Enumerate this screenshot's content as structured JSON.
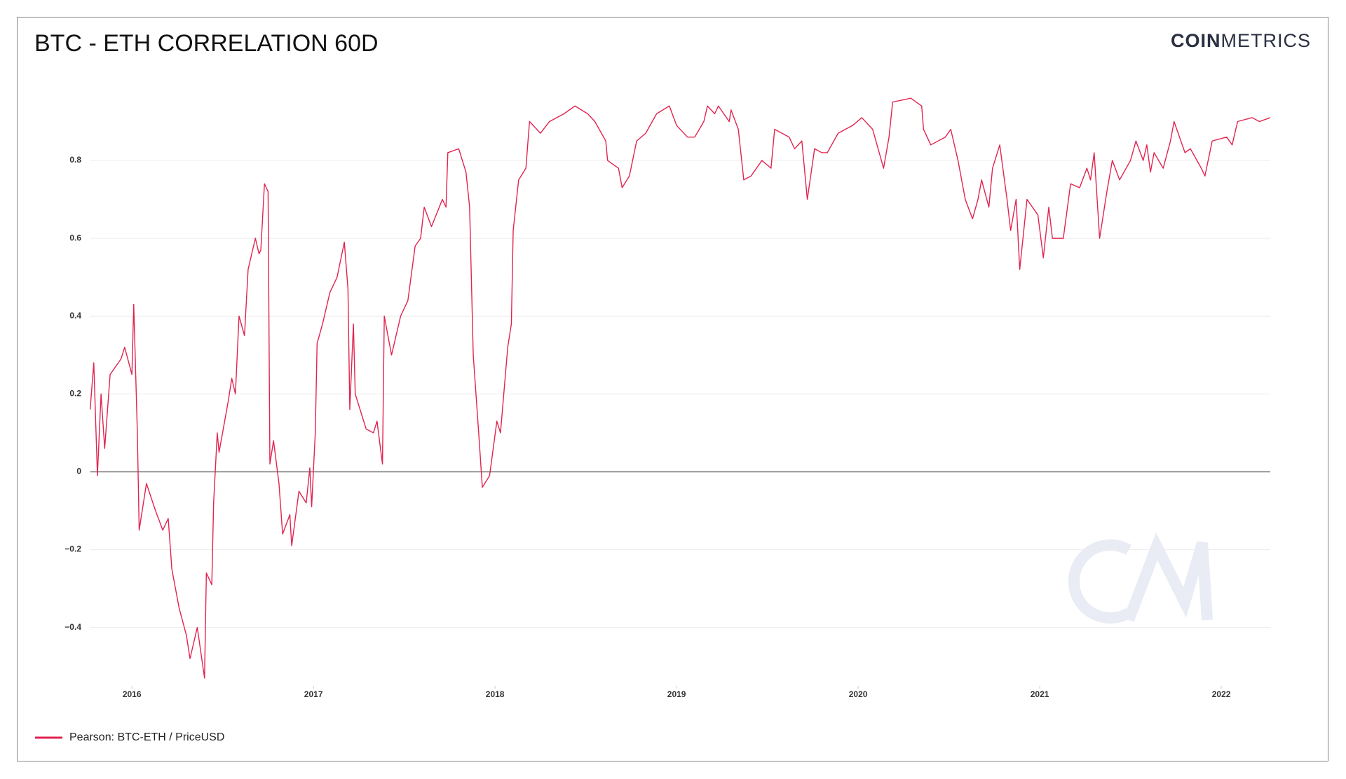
{
  "logo": {
    "bold": "COIN",
    "light": "METRICS"
  },
  "chart_data": {
    "type": "line",
    "title": "BTC - ETH CORRELATION 60D",
    "x": [
      2015.77,
      2015.79,
      2015.81,
      2015.83,
      2015.85,
      2015.88,
      2015.94,
      2015.96,
      2016.0,
      2016.01,
      2016.03,
      2016.04,
      2016.08,
      2016.13,
      2016.17,
      2016.2,
      2016.22,
      2016.26,
      2016.3,
      2016.32,
      2016.36,
      2016.4,
      2016.41,
      2016.44,
      2016.45,
      2016.47,
      2016.48,
      2016.53,
      2016.55,
      2016.57,
      2016.59,
      2016.62,
      2016.64,
      2016.68,
      2016.7,
      2016.71,
      2016.73,
      2016.75,
      2016.76,
      2016.78,
      2016.81,
      2016.83,
      2016.87,
      2016.88,
      2016.92,
      2016.96,
      2016.98,
      2016.99,
      2017.01,
      2017.02,
      2017.05,
      2017.09,
      2017.13,
      2017.17,
      2017.19,
      2017.2,
      2017.22,
      2017.23,
      2017.29,
      2017.33,
      2017.35,
      2017.38,
      2017.39,
      2017.43,
      2017.48,
      2017.52,
      2017.56,
      2017.59,
      2017.61,
      2017.65,
      2017.71,
      2017.73,
      2017.74,
      2017.8,
      2017.84,
      2017.86,
      2017.88,
      2017.91,
      2017.93,
      2017.97,
      2018.01,
      2018.03,
      2018.07,
      2018.09,
      2018.1,
      2018.13,
      2018.17,
      2018.19,
      2018.25,
      2018.3,
      2018.38,
      2018.44,
      2018.51,
      2018.55,
      2018.61,
      2018.62,
      2018.68,
      2018.7,
      2018.74,
      2018.78,
      2018.83,
      2018.89,
      2018.96,
      2019.0,
      2019.06,
      2019.1,
      2019.15,
      2019.17,
      2019.21,
      2019.23,
      2019.29,
      2019.3,
      2019.34,
      2019.37,
      2019.41,
      2019.47,
      2019.52,
      2019.54,
      2019.62,
      2019.65,
      2019.69,
      2019.72,
      2019.76,
      2019.8,
      2019.83,
      2019.89,
      2019.97,
      2020.02,
      2020.08,
      2020.14,
      2020.17,
      2020.19,
      2020.29,
      2020.35,
      2020.36,
      2020.4,
      2020.48,
      2020.51,
      2020.55,
      2020.59,
      2020.63,
      2020.66,
      2020.68,
      2020.72,
      2020.74,
      2020.78,
      2020.82,
      2020.84,
      2020.87,
      2020.89,
      2020.93,
      2020.99,
      2021.02,
      2021.05,
      2021.07,
      2021.13,
      2021.17,
      2021.22,
      2021.26,
      2021.28,
      2021.3,
      2021.33,
      2021.37,
      2021.4,
      2021.44,
      2021.5,
      2021.53,
      2021.57,
      2021.59,
      2021.61,
      2021.63,
      2021.68,
      2021.72,
      2021.74,
      2021.8,
      2021.83,
      2021.89,
      2021.91,
      2021.95,
      2022.03,
      2022.06,
      2022.09,
      2022.17,
      2022.21,
      2022.27
    ],
    "series": [
      {
        "name": "Pearson: BTC-ETH / PriceUSD",
        "color": "#e2234f",
        "values": [
          0.16,
          0.28,
          -0.01,
          0.2,
          0.06,
          0.25,
          0.29,
          0.32,
          0.25,
          0.43,
          0.1,
          -0.15,
          -0.03,
          -0.1,
          -0.15,
          -0.12,
          -0.25,
          -0.35,
          -0.42,
          -0.48,
          -0.4,
          -0.53,
          -0.26,
          -0.29,
          -0.08,
          0.1,
          0.05,
          0.18,
          0.24,
          0.2,
          0.4,
          0.35,
          0.52,
          0.6,
          0.56,
          0.57,
          0.74,
          0.72,
          0.02,
          0.08,
          -0.03,
          -0.16,
          -0.11,
          -0.19,
          -0.05,
          -0.08,
          0.01,
          -0.09,
          0.1,
          0.33,
          0.38,
          0.46,
          0.5,
          0.59,
          0.47,
          0.16,
          0.38,
          0.2,
          0.11,
          0.1,
          0.13,
          0.02,
          0.4,
          0.3,
          0.4,
          0.44,
          0.58,
          0.6,
          0.68,
          0.63,
          0.7,
          0.68,
          0.82,
          0.83,
          0.77,
          0.68,
          0.3,
          0.1,
          -0.04,
          -0.01,
          0.13,
          0.1,
          0.32,
          0.38,
          0.62,
          0.75,
          0.78,
          0.9,
          0.87,
          0.9,
          0.92,
          0.94,
          0.92,
          0.9,
          0.85,
          0.8,
          0.78,
          0.73,
          0.76,
          0.85,
          0.87,
          0.92,
          0.94,
          0.89,
          0.86,
          0.86,
          0.9,
          0.94,
          0.92,
          0.94,
          0.9,
          0.93,
          0.88,
          0.75,
          0.76,
          0.8,
          0.78,
          0.88,
          0.86,
          0.83,
          0.85,
          0.7,
          0.83,
          0.82,
          0.82,
          0.87,
          0.89,
          0.91,
          0.88,
          0.78,
          0.86,
          0.95,
          0.96,
          0.94,
          0.88,
          0.84,
          0.86,
          0.88,
          0.8,
          0.7,
          0.65,
          0.7,
          0.75,
          0.68,
          0.78,
          0.84,
          0.7,
          0.62,
          0.7,
          0.52,
          0.7,
          0.66,
          0.55,
          0.68,
          0.6,
          0.6,
          0.74,
          0.73,
          0.78,
          0.75,
          0.82,
          0.6,
          0.72,
          0.8,
          0.75,
          0.8,
          0.85,
          0.8,
          0.84,
          0.77,
          0.82,
          0.78,
          0.85,
          0.9,
          0.82,
          0.83,
          0.78,
          0.76,
          0.85,
          0.86,
          0.84,
          0.9,
          0.91,
          0.9,
          0.91
        ]
      }
    ],
    "xlim": [
      2015.77,
      2022.27
    ],
    "xticks": [
      2016,
      2017,
      2018,
      2019,
      2020,
      2021,
      2022
    ],
    "ylim": [
      -0.55,
      0.97
    ],
    "yticks": [
      {
        "value": -0.4,
        "label": "−0.4"
      },
      {
        "value": -0.2,
        "label": "−0.2"
      },
      0,
      0.2,
      0.4,
      0.6,
      0.8
    ],
    "grid": true,
    "legend": "bottom-left"
  }
}
